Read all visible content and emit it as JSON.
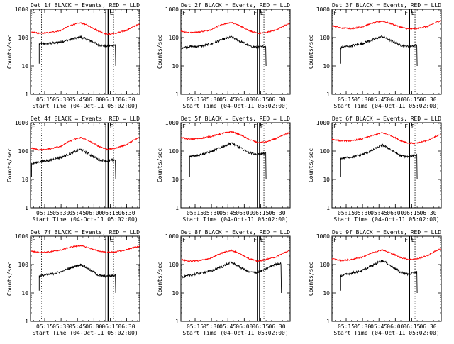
{
  "chart_data": [
    {
      "type": "line",
      "title": "Det 1f BLACK = Events, RED = LLD",
      "xlabel": "Start Time (04-Oct-11 05:02:00)",
      "ylabel": "Counts/sec",
      "yscale": "log",
      "ylim": [
        1,
        1000
      ],
      "y_ticks": [
        "1",
        "10",
        "100",
        "1000"
      ],
      "xlim": [
        "05:02",
        "06:42"
      ],
      "x_ticks": [
        "05:15",
        "05:30",
        "05:45",
        "06:00",
        "06:15",
        "06:30"
      ],
      "markers": {
        "F": "06:11",
        "E": "06:14"
      },
      "events_start": "05:10",
      "events_end": "06:22",
      "dotted_lines": [
        "05:12",
        "06:18"
      ],
      "bars": [
        "06:11",
        "06:13"
      ],
      "series": [
        {
          "name": "BLACK = Events",
          "color": "#000000",
          "x": [
            "05:10",
            "05:20",
            "05:30",
            "05:40",
            "05:48",
            "05:56",
            "06:04",
            "06:12",
            "06:20"
          ],
          "y": [
            60,
            62,
            70,
            88,
            105,
            80,
            55,
            50,
            55
          ]
        },
        {
          "name": "RED = LLD",
          "color": "#ff0000",
          "x": [
            "05:02",
            "05:10",
            "05:20",
            "05:30",
            "05:40",
            "05:48",
            "05:56",
            "06:04",
            "06:12",
            "06:20",
            "06:30",
            "06:42"
          ],
          "y": [
            160,
            140,
            150,
            180,
            280,
            330,
            250,
            170,
            130,
            140,
            180,
            300
          ]
        }
      ]
    },
    {
      "type": "line",
      "title": "Det 2f BLACK = Events, RED = LLD",
      "xlabel": "Start Time (04-Oct-11 05:02:00)",
      "ylabel": "Counts/sec",
      "yscale": "log",
      "ylim": [
        1,
        1000
      ],
      "y_ticks": [
        "1",
        "10",
        "100",
        "1000"
      ],
      "xlim": [
        "05:02",
        "06:42"
      ],
      "x_ticks": [
        "05:15",
        "05:30",
        "05:45",
        "06:00",
        "06:15",
        "06:30"
      ],
      "markers": {
        "F": "06:11",
        "E": "06:14"
      },
      "events_start": "05:03",
      "events_end": "06:22",
      "dotted_lines": [
        "06:18"
      ],
      "bars": [
        "06:12",
        "06:14"
      ],
      "series": [
        {
          "name": "BLACK = Events",
          "color": "#000000",
          "x": [
            "05:03",
            "05:10",
            "05:20",
            "05:30",
            "05:40",
            "05:48",
            "05:56",
            "06:04",
            "06:12",
            "06:20"
          ],
          "y": [
            45,
            48,
            50,
            60,
            85,
            105,
            75,
            52,
            45,
            50
          ]
        },
        {
          "name": "RED = LLD",
          "color": "#ff0000",
          "x": [
            "05:02",
            "05:10",
            "05:20",
            "05:30",
            "05:40",
            "05:48",
            "05:56",
            "06:04",
            "06:12",
            "06:20",
            "06:30",
            "06:42"
          ],
          "y": [
            170,
            150,
            160,
            190,
            290,
            340,
            260,
            180,
            140,
            150,
            190,
            320
          ]
        }
      ]
    },
    {
      "type": "line",
      "title": "Det 3f BLACK = Events, RED = LLD",
      "xlabel": "Start Time (04-Oct-11 05:02:00)",
      "ylabel": "Counts/sec",
      "yscale": "log",
      "ylim": [
        1,
        1000
      ],
      "y_ticks": [
        "1",
        "10",
        "100",
        "1000"
      ],
      "xlim": [
        "05:02",
        "06:42"
      ],
      "x_ticks": [
        "05:15",
        "05:30",
        "05:45",
        "06:00",
        "06:15",
        "06:30"
      ],
      "markers": {
        "F": "06:11",
        "E": "06:14"
      },
      "events_start": "05:10",
      "events_end": "06:22",
      "dotted_lines": [
        "05:12",
        "06:18"
      ],
      "bars": [
        "06:13"
      ],
      "series": [
        {
          "name": "BLACK = Events",
          "color": "#000000",
          "x": [
            "05:10",
            "05:20",
            "05:30",
            "05:40",
            "05:48",
            "05:56",
            "06:04",
            "06:12",
            "06:20"
          ],
          "y": [
            45,
            52,
            62,
            85,
            110,
            78,
            55,
            48,
            55
          ]
        },
        {
          "name": "RED = LLD",
          "color": "#ff0000",
          "x": [
            "05:02",
            "05:10",
            "05:20",
            "05:30",
            "05:40",
            "05:48",
            "05:56",
            "06:04",
            "06:12",
            "06:20",
            "06:30",
            "06:42"
          ],
          "y": [
            260,
            220,
            210,
            240,
            330,
            380,
            310,
            240,
            200,
            210,
            250,
            400
          ]
        }
      ]
    },
    {
      "type": "line",
      "title": "Det 4f BLACK = Events, RED = LLD",
      "xlabel": "Start Time (04-Oct-11 05:02:00)",
      "ylabel": "Counts/sec",
      "yscale": "log",
      "ylim": [
        1,
        1000
      ],
      "y_ticks": [
        "1",
        "10",
        "100",
        "1000"
      ],
      "xlim": [
        "05:02",
        "06:42"
      ],
      "x_ticks": [
        "05:15",
        "05:30",
        "05:45",
        "06:00",
        "06:15",
        "06:30"
      ],
      "markers": {
        "F": "06:11",
        "E": "06:14"
      },
      "events_start": "05:03",
      "events_end": "06:22",
      "dotted_lines": [
        "05:12",
        "06:18"
      ],
      "bars": [
        "06:11",
        "06:13"
      ],
      "series": [
        {
          "name": "BLACK = Events",
          "color": "#000000",
          "x": [
            "05:03",
            "05:10",
            "05:20",
            "05:30",
            "05:40",
            "05:48",
            "05:56",
            "06:04",
            "06:12",
            "06:20"
          ],
          "y": [
            35,
            42,
            48,
            60,
            85,
            115,
            75,
            50,
            45,
            50
          ]
        },
        {
          "name": "RED = LLD",
          "color": "#ff0000",
          "x": [
            "05:02",
            "05:10",
            "05:20",
            "05:30",
            "05:40",
            "05:48",
            "05:56",
            "06:04",
            "06:12",
            "06:20",
            "06:30",
            "06:42"
          ],
          "y": [
            130,
            110,
            120,
            150,
            240,
            300,
            220,
            150,
            115,
            125,
            170,
            300
          ]
        }
      ]
    },
    {
      "type": "line",
      "title": "Det 5f BLACK = Events, RED = LLD",
      "xlabel": "Start Time (04-Oct-11 05:02:00)",
      "ylabel": "Counts/sec",
      "yscale": "log",
      "ylim": [
        1,
        1000
      ],
      "y_ticks": [
        "1",
        "10",
        "100",
        "1000"
      ],
      "xlim": [
        "05:02",
        "06:42"
      ],
      "x_ticks": [
        "05:15",
        "05:30",
        "05:45",
        "06:00",
        "06:15",
        "06:30"
      ],
      "markers": {
        "F": "06:11",
        "E": "06:14"
      },
      "events_start": "05:10",
      "events_end": "06:22",
      "dotted_lines": [
        "06:18"
      ],
      "bars": [
        "06:12",
        "06:14"
      ],
      "series": [
        {
          "name": "BLACK = Events",
          "color": "#000000",
          "x": [
            "05:10",
            "05:20",
            "05:30",
            "05:40",
            "05:48",
            "05:56",
            "06:04",
            "06:12",
            "06:20"
          ],
          "y": [
            65,
            75,
            95,
            140,
            190,
            130,
            90,
            75,
            85
          ]
        },
        {
          "name": "RED = LLD",
          "color": "#ff0000",
          "x": [
            "05:02",
            "05:10",
            "05:20",
            "05:30",
            "05:40",
            "05:48",
            "05:56",
            "06:04",
            "06:12",
            "06:20",
            "06:30",
            "06:42"
          ],
          "y": [
            300,
            260,
            280,
            330,
            420,
            480,
            380,
            260,
            200,
            210,
            280,
            450
          ]
        }
      ]
    },
    {
      "type": "line",
      "title": "Det 6f BLACK = Events, RED = LLD",
      "xlabel": "Start Time (04-Oct-11 05:02:00)",
      "ylabel": "Counts/sec",
      "yscale": "log",
      "ylim": [
        1,
        1000
      ],
      "y_ticks": [
        "1",
        "10",
        "100",
        "1000"
      ],
      "xlim": [
        "05:02",
        "06:42"
      ],
      "x_ticks": [
        "05:15",
        "05:30",
        "05:45",
        "06:00",
        "06:15",
        "06:30"
      ],
      "markers": {
        "F": "06:11",
        "E": "06:14"
      },
      "events_start": "05:10",
      "events_end": "06:22",
      "dotted_lines": [
        "05:12",
        "06:18"
      ],
      "bars": [
        "06:13"
      ],
      "series": [
        {
          "name": "BLACK = Events",
          "color": "#000000",
          "x": [
            "05:10",
            "05:20",
            "05:30",
            "05:40",
            "05:48",
            "05:56",
            "06:04",
            "06:12",
            "06:20"
          ],
          "y": [
            55,
            62,
            75,
            110,
            165,
            110,
            70,
            62,
            75
          ]
        },
        {
          "name": "RED = LLD",
          "color": "#ff0000",
          "x": [
            "05:02",
            "05:10",
            "05:20",
            "05:30",
            "05:40",
            "05:48",
            "05:56",
            "06:04",
            "06:12",
            "06:20",
            "06:30",
            "06:42"
          ],
          "y": [
            260,
            230,
            230,
            270,
            360,
            440,
            350,
            240,
            190,
            190,
            240,
            390
          ]
        }
      ]
    },
    {
      "type": "line",
      "title": "Det 7f BLACK = Events, RED = LLD",
      "xlabel": "Start Time (04-Oct-11 05:02:00)",
      "ylabel": "Counts/sec",
      "yscale": "log",
      "ylim": [
        1,
        1000
      ],
      "y_ticks": [
        "1",
        "10",
        "100",
        "1000"
      ],
      "xlim": [
        "05:02",
        "06:42"
      ],
      "x_ticks": [
        "05:15",
        "05:30",
        "05:45",
        "06:00",
        "06:15",
        "06:30"
      ],
      "markers": {
        "F": "06:11",
        "E": "06:14"
      },
      "events_start": "05:10",
      "events_end": "06:22",
      "dotted_lines": [
        "05:12",
        "06:18"
      ],
      "bars": [
        "06:11",
        "06:13"
      ],
      "series": [
        {
          "name": "BLACK = Events",
          "color": "#000000",
          "x": [
            "05:10",
            "05:20",
            "05:30",
            "05:40",
            "05:48",
            "05:56",
            "06:04",
            "06:12",
            "06:20"
          ],
          "y": [
            40,
            45,
            55,
            80,
            100,
            65,
            42,
            38,
            42
          ]
        },
        {
          "name": "RED = LLD",
          "color": "#ff0000",
          "x": [
            "05:02",
            "05:10",
            "05:20",
            "05:30",
            "05:40",
            "05:48",
            "05:56",
            "06:04",
            "06:12",
            "06:20",
            "06:30",
            "06:42"
          ],
          "y": [
            300,
            270,
            280,
            330,
            420,
            470,
            380,
            300,
            270,
            280,
            330,
            450
          ]
        }
      ]
    },
    {
      "type": "line",
      "title": "Det 8f BLACK = Events, RED = LLD",
      "xlabel": "Start Time (04-Oct-11 05:02:00)",
      "ylabel": "Counts/sec",
      "yscale": "log",
      "ylim": [
        1,
        1000
      ],
      "y_ticks": [
        "1",
        "10",
        "100",
        "1000"
      ],
      "xlim": [
        "05:02",
        "06:42"
      ],
      "x_ticks": [
        "05:15",
        "05:30",
        "05:45",
        "06:00",
        "06:15",
        "06:30"
      ],
      "markers": {
        "F": "06:11",
        "E": "06:14"
      },
      "events_start": "05:03",
      "events_end": "06:34",
      "dotted_lines": [
        "06:18"
      ],
      "bars": [
        "06:12",
        "06:14"
      ],
      "series": [
        {
          "name": "BLACK = Events",
          "color": "#000000",
          "x": [
            "05:03",
            "05:10",
            "05:20",
            "05:30",
            "05:40",
            "05:48",
            "05:56",
            "06:04",
            "06:12",
            "06:20",
            "06:28",
            "06:34"
          ],
          "y": [
            35,
            42,
            50,
            60,
            85,
            120,
            80,
            55,
            52,
            70,
            100,
            110
          ]
        },
        {
          "name": "RED = LLD",
          "color": "#ff0000",
          "x": [
            "05:02",
            "05:10",
            "05:20",
            "05:30",
            "05:40",
            "05:48",
            "05:56",
            "06:04",
            "06:12",
            "06:20",
            "06:30",
            "06:42"
          ],
          "y": [
            150,
            130,
            140,
            170,
            260,
            320,
            240,
            165,
            130,
            150,
            190,
            320
          ]
        }
      ]
    },
    {
      "type": "line",
      "title": "Det 9f BLACK = Events, RED = LLD",
      "xlabel": "Start Time (04-Oct-11 05:02:00)",
      "ylabel": "Counts/sec",
      "yscale": "log",
      "ylim": [
        1,
        1000
      ],
      "y_ticks": [
        "1",
        "10",
        "100",
        "1000"
      ],
      "xlim": [
        "05:02",
        "06:42"
      ],
      "x_ticks": [
        "05:15",
        "05:30",
        "05:45",
        "06:00",
        "06:15",
        "06:30"
      ],
      "markers": {
        "F": "06:11",
        "E": "06:14"
      },
      "events_start": "05:10",
      "events_end": "06:22",
      "dotted_lines": [
        "05:12",
        "06:18"
      ],
      "bars": [
        "06:13"
      ],
      "series": [
        {
          "name": "BLACK = Events",
          "color": "#000000",
          "x": [
            "05:10",
            "05:20",
            "05:30",
            "05:40",
            "05:48",
            "05:56",
            "06:04",
            "06:12",
            "06:20"
          ],
          "y": [
            40,
            50,
            62,
            95,
            140,
            90,
            55,
            45,
            55
          ]
        },
        {
          "name": "RED = LLD",
          "color": "#ff0000",
          "x": [
            "05:02",
            "05:10",
            "05:20",
            "05:30",
            "05:40",
            "05:48",
            "05:56",
            "06:04",
            "06:12",
            "06:20",
            "06:30",
            "06:42"
          ],
          "y": [
            160,
            140,
            150,
            185,
            270,
            330,
            250,
            180,
            150,
            160,
            210,
            370
          ]
        }
      ]
    }
  ]
}
